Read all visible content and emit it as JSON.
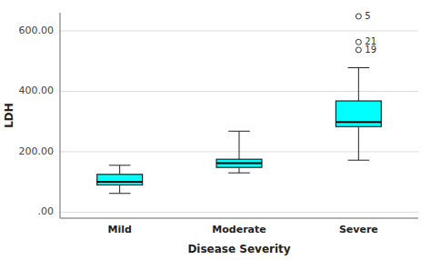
{
  "chart_data": {
    "type": "box",
    "xlabel": "Disease Severity",
    "ylabel": "LDH",
    "categories": [
      "Mild",
      "Moderate",
      "Severe"
    ],
    "boxes": [
      {
        "q1": 90,
        "median": 100,
        "q3": 125,
        "whisker_low": 62,
        "whisker_high": 155,
        "outliers": [],
        "outlier_labels": []
      },
      {
        "q1": 148,
        "median": 162,
        "q3": 175,
        "whisker_low": 130,
        "whisker_high": 268,
        "outliers": [],
        "outlier_labels": []
      },
      {
        "q1": 283,
        "median": 298,
        "q3": 368,
        "whisker_low": 172,
        "whisker_high": 478,
        "outliers": [
          537,
          563,
          648
        ],
        "outlier_labels": [
          "19",
          "21",
          "5"
        ]
      }
    ],
    "color": "#00FFFF",
    "ylim": [
      -20,
      660
    ],
    "yticks": [
      {
        "value": 0,
        "label": ".00"
      },
      {
        "value": 200,
        "label": "200.00"
      },
      {
        "value": 400,
        "label": "400.00"
      },
      {
        "value": 600,
        "label": "600.00"
      }
    ],
    "grid": true
  }
}
